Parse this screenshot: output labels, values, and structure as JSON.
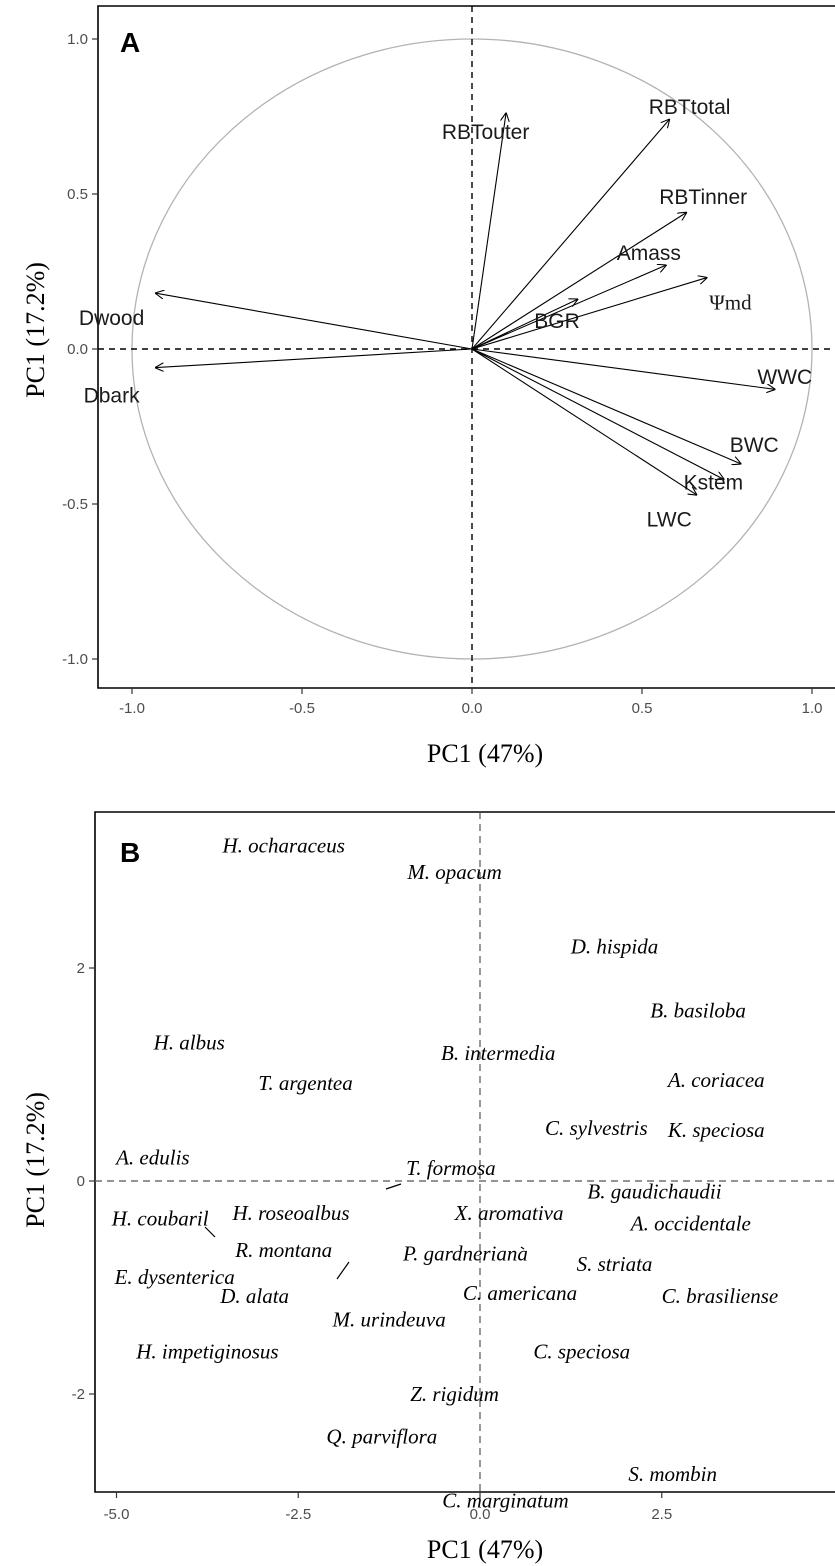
{
  "chart_data": [
    {
      "type": "scatter",
      "panel": "A",
      "xlabel": "PC1 (47%)",
      "ylabel": "PC1 (17.2%)",
      "xlim": [
        -1.1,
        1.1
      ],
      "ylim": [
        -1.1,
        1.1
      ],
      "x_ticks": [
        "-1.0",
        "-0.5",
        "0.0",
        "0.5",
        "1.0"
      ],
      "y_ticks": [
        "-1.0",
        "-0.5",
        "0.0",
        "0.5",
        "1.0"
      ],
      "grid": false,
      "correlation_circle": true,
      "loadings": [
        {
          "label": "RBTouter",
          "x": 0.1,
          "y": 0.76,
          "lx": 0.04,
          "ly": 0.7
        },
        {
          "label": "RBTtotal",
          "x": 0.58,
          "y": 0.74,
          "lx": 0.64,
          "ly": 0.78
        },
        {
          "label": "RBTinner",
          "x": 0.63,
          "y": 0.44,
          "lx": 0.68,
          "ly": 0.49
        },
        {
          "label": "Amass",
          "x": 0.57,
          "y": 0.27,
          "lx": 0.52,
          "ly": 0.31
        },
        {
          "label": "Ψmd",
          "x": 0.69,
          "y": 0.23,
          "lx": 0.76,
          "ly": 0.15,
          "serif": true
        },
        {
          "label": "BGR",
          "x": 0.31,
          "y": 0.16,
          "lx": 0.25,
          "ly": 0.09
        },
        {
          "label": "WWC",
          "x": 0.89,
          "y": -0.13,
          "lx": 0.92,
          "ly": -0.09
        },
        {
          "label": "BWC",
          "x": 0.79,
          "y": -0.37,
          "lx": 0.83,
          "ly": -0.31
        },
        {
          "label": "Kstem",
          "x": 0.74,
          "y": -0.42,
          "lx": 0.71,
          "ly": -0.43
        },
        {
          "label": "LWC",
          "x": 0.66,
          "y": -0.47,
          "lx": 0.58,
          "ly": -0.55
        },
        {
          "label": "Dwood",
          "x": -0.93,
          "y": 0.18,
          "lx": -1.06,
          "ly": 0.1
        },
        {
          "label": "Dbark",
          "x": -0.93,
          "y": -0.06,
          "lx": -1.06,
          "ly": -0.15
        }
      ]
    },
    {
      "type": "scatter",
      "panel": "B",
      "xlabel": "PC1 (47%)",
      "ylabel": "PC1 (17.2%)",
      "xlim": [
        -5.05,
        3.3
      ],
      "ylim": [
        -2.95,
        3.35
      ],
      "x_ticks": [
        "-5.0",
        "-2.5",
        "0.0",
        "2.5"
      ],
      "x_tick_values": [
        -5.0,
        -2.5,
        0.0,
        2.5
      ],
      "y_ticks": [
        "2",
        "0",
        "-2"
      ],
      "y_tick_values": [
        2,
        0,
        -2
      ],
      "grid": false,
      "points": [
        {
          "label": "H. ocharaceus",
          "x": -2.7,
          "y": 3.15
        },
        {
          "label": "M. opacum",
          "x": -0.35,
          "y": 2.9
        },
        {
          "label": "D. hispida",
          "x": 1.85,
          "y": 2.2
        },
        {
          "label": "B. basiloba",
          "x": 3.0,
          "y": 1.6
        },
        {
          "label": "H. albus",
          "x": -4.0,
          "y": 1.3
        },
        {
          "label": "B. intermedia",
          "x": 0.25,
          "y": 1.2
        },
        {
          "label": "A. coriacea",
          "x": 3.25,
          "y": 0.95
        },
        {
          "label": "T. argentea",
          "x": -2.4,
          "y": 0.92
        },
        {
          "label": "C. sylvestris",
          "x": 1.6,
          "y": 0.5
        },
        {
          "label": "K. speciosa",
          "x": 3.25,
          "y": 0.48
        },
        {
          "label": "A. edulis",
          "x": -4.5,
          "y": 0.22
        },
        {
          "label": "T. formosa",
          "x": -0.4,
          "y": 0.12
        },
        {
          "label": "B. gaudichaudii",
          "x": 2.4,
          "y": -0.1
        },
        {
          "label": "H. coubaril",
          "x": -4.4,
          "y": -0.35
        },
        {
          "label": "H. roseoalbus",
          "x": -2.6,
          "y": -0.3
        },
        {
          "label": "X. aromativa",
          "x": 0.4,
          "y": -0.3
        },
        {
          "label": "A. occidentale",
          "x": 2.9,
          "y": -0.4
        },
        {
          "label": "R. montana",
          "x": -2.7,
          "y": -0.65
        },
        {
          "label": "P. gardneriana",
          "x": -0.2,
          "y": -0.68
        },
        {
          "label": "S. striata",
          "x": 1.85,
          "y": -0.78
        },
        {
          "label": "E. dysenterica",
          "x": -4.2,
          "y": -0.9
        },
        {
          "label": "C. americana",
          "x": 0.55,
          "y": -1.05
        },
        {
          "label": "D. alata",
          "x": -3.1,
          "y": -1.08
        },
        {
          "label": "C. brasiliense",
          "x": 3.3,
          "y": -1.08
        },
        {
          "label": "M. urindeuva",
          "x": -1.25,
          "y": -1.3
        },
        {
          "label": "H. impetiginosus",
          "x": -3.75,
          "y": -1.6
        },
        {
          "label": "C. speciosa",
          "x": 1.4,
          "y": -1.6
        },
        {
          "label": "Z. rigidum",
          "x": -0.35,
          "y": -2.0
        },
        {
          "label": "Q. parviflora",
          "x": -1.35,
          "y": -2.4
        },
        {
          "label": "S. mombin",
          "x": 2.65,
          "y": -2.75
        },
        {
          "label": "C. marginatum",
          "x": 0.35,
          "y": -3.0
        }
      ]
    }
  ]
}
